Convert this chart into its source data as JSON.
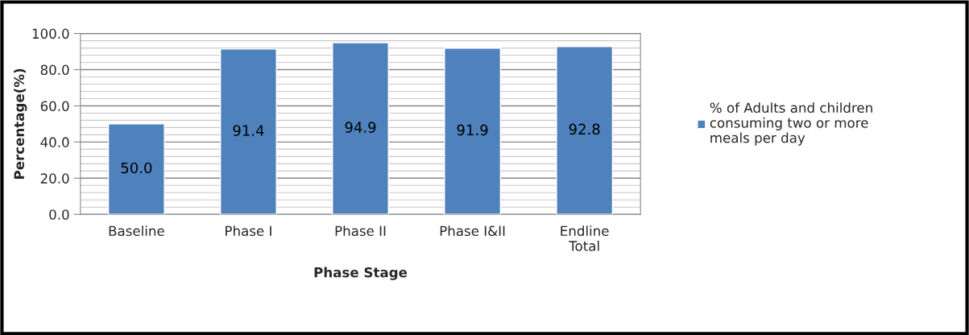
{
  "chart_data": {
    "type": "bar",
    "xlabel": "Phase Stage",
    "ylabel": "Percentage(%)",
    "categories": [
      "Baseline",
      "Phase I",
      "Phase II",
      "Phase I&II",
      "Endline\nTotal"
    ],
    "series": [
      {
        "name": "% of Adults and children\nconsuming two or more\nmeals per day",
        "color": "#4f81bd",
        "values": [
          50.0,
          91.4,
          94.9,
          91.9,
          92.8
        ],
        "value_labels": [
          "50.0",
          "91.4",
          "94.9",
          "91.9",
          "92.8"
        ]
      }
    ],
    "ylim": [
      0,
      100
    ],
    "yticks": [
      {
        "value": 0,
        "label": "0.0"
      },
      {
        "value": 20,
        "label": "20.0"
      },
      {
        "value": 40,
        "label": "40.0"
      },
      {
        "value": 60,
        "label": "60.0"
      },
      {
        "value": 80,
        "label": "80.0"
      },
      {
        "value": 100,
        "label": "100.0"
      }
    ],
    "grid": "y",
    "legend": "right"
  }
}
